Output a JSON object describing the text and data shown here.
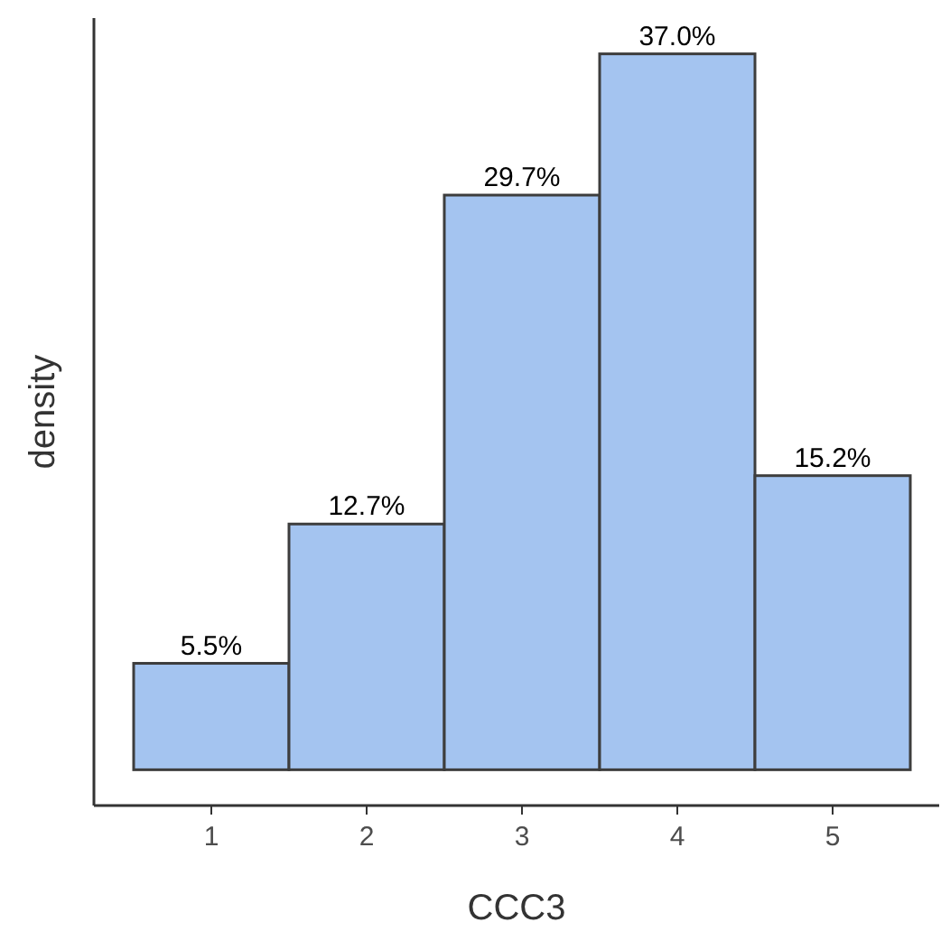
{
  "chart_data": {
    "type": "bar",
    "xlabel": "CCC3",
    "ylabel": "density",
    "categories": [
      "1",
      "2",
      "3",
      "4",
      "5"
    ],
    "values": [
      5.5,
      12.7,
      29.7,
      37.0,
      15.2
    ],
    "value_labels": [
      "5.5%",
      "12.7%",
      "29.7%",
      "37.0%",
      "15.2%"
    ],
    "color": "#a4c4f0",
    "ylim": [
      -1.85,
      38.85
    ],
    "tick_labels": "x"
  }
}
